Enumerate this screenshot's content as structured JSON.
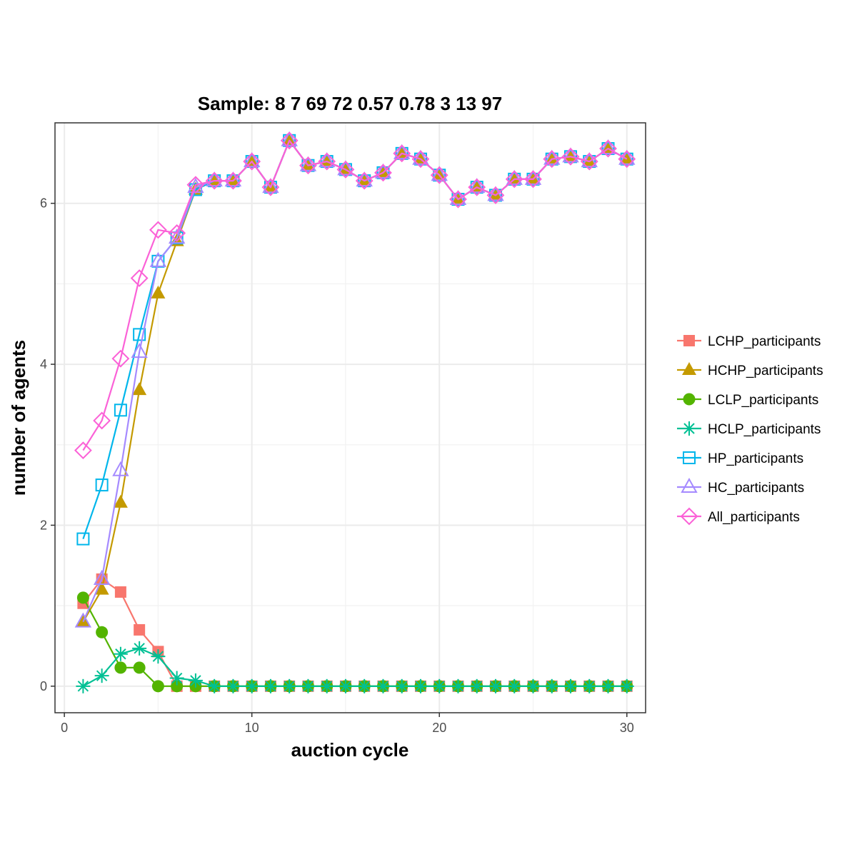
{
  "chart_data": {
    "type": "line",
    "title": "Sample: 8 7 69 72 0.57 0.78 3 13 97",
    "xlabel": "auction cycle",
    "ylabel": "number of agents",
    "xlim": [
      -0.5,
      31.0
    ],
    "ylim": [
      -0.33,
      7.0
    ],
    "xticks": [
      0,
      10,
      20,
      30
    ],
    "yticks": [
      0,
      2,
      4,
      6
    ],
    "grid": true,
    "legend_position": "right",
    "x": [
      1,
      2,
      3,
      4,
      5,
      6,
      7,
      8,
      9,
      10,
      11,
      12,
      13,
      14,
      15,
      16,
      17,
      18,
      19,
      20,
      21,
      22,
      23,
      24,
      25,
      26,
      27,
      28,
      29,
      30
    ],
    "series": [
      {
        "name": "LCHP_participants",
        "color": "#F8766D",
        "marker": "filled-square",
        "values": [
          1.03,
          1.33,
          1.17,
          0.7,
          0.43,
          0,
          0,
          0,
          0,
          0,
          0,
          0,
          0,
          0,
          0,
          0,
          0,
          0,
          0,
          0,
          0,
          0,
          0,
          0,
          0,
          0,
          0,
          0,
          0,
          0
        ]
      },
      {
        "name": "HCHP_participants",
        "color": "#C49A00",
        "marker": "filled-triangle",
        "values": [
          0.8,
          1.2,
          2.28,
          3.68,
          4.88,
          5.53,
          6.17,
          6.28,
          6.28,
          6.52,
          6.2,
          6.78,
          6.47,
          6.52,
          6.42,
          6.28,
          6.38,
          6.62,
          6.55,
          6.35,
          6.05,
          6.2,
          6.1,
          6.3,
          6.3,
          6.55,
          6.58,
          6.52,
          6.68,
          6.55
        ]
      },
      {
        "name": "LCLP_participants",
        "color": "#53B400",
        "marker": "filled-circle",
        "values": [
          1.1,
          0.67,
          0.23,
          0.23,
          0,
          0,
          0,
          0,
          0,
          0,
          0,
          0,
          0,
          0,
          0,
          0,
          0,
          0,
          0,
          0,
          0,
          0,
          0,
          0,
          0,
          0,
          0,
          0,
          0,
          0
        ]
      },
      {
        "name": "HCLP_participants",
        "color": "#00C094",
        "marker": "asterisk",
        "values": [
          0,
          0.13,
          0.4,
          0.47,
          0.37,
          0.1,
          0.07,
          0,
          0,
          0,
          0,
          0,
          0,
          0,
          0,
          0,
          0,
          0,
          0,
          0,
          0,
          0,
          0,
          0,
          0,
          0,
          0,
          0,
          0,
          0
        ]
      },
      {
        "name": "HP_participants",
        "color": "#00B6EB",
        "marker": "open-square",
        "values": [
          1.83,
          2.5,
          3.43,
          4.37,
          5.28,
          5.57,
          6.17,
          6.28,
          6.28,
          6.52,
          6.2,
          6.78,
          6.47,
          6.52,
          6.42,
          6.28,
          6.38,
          6.62,
          6.55,
          6.35,
          6.05,
          6.2,
          6.1,
          6.3,
          6.3,
          6.55,
          6.58,
          6.52,
          6.68,
          6.55
        ]
      },
      {
        "name": "HC_participants",
        "color": "#A58AFF",
        "marker": "open-triangle",
        "values": [
          0.8,
          1.33,
          2.68,
          4.15,
          5.28,
          5.57,
          6.2,
          6.28,
          6.28,
          6.52,
          6.2,
          6.78,
          6.47,
          6.52,
          6.42,
          6.28,
          6.38,
          6.62,
          6.55,
          6.35,
          6.05,
          6.2,
          6.1,
          6.3,
          6.3,
          6.55,
          6.58,
          6.52,
          6.68,
          6.55
        ]
      },
      {
        "name": "All_participants",
        "color": "#FB61D7",
        "marker": "open-diamond",
        "values": [
          2.93,
          3.3,
          4.07,
          5.07,
          5.67,
          5.63,
          6.23,
          6.28,
          6.28,
          6.52,
          6.2,
          6.78,
          6.47,
          6.52,
          6.42,
          6.28,
          6.38,
          6.62,
          6.55,
          6.35,
          6.05,
          6.2,
          6.1,
          6.3,
          6.3,
          6.55,
          6.58,
          6.52,
          6.68,
          6.55
        ]
      }
    ]
  }
}
